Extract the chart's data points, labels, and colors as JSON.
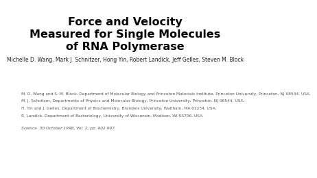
{
  "title_line1": "Force and Velocity",
  "title_line2": "Measured for Single Molecules",
  "title_line3": "of RNA Polymerase",
  "authors": "Michelle D. Wang, Mark J. Schnitzer, Hong Yin, Robert Landick, Jeff Gelles, Steven M. Block",
  "affil1": "M. D. Wang and S. M. Block, Department of Molecular Biology and Princeton Materials Institute, Princeton University, Princeton, NJ 08544, USA.",
  "affil2": "M. J. Schnitzer, Departments of Physics and Molecular Biology, Princeton University, Princeton, NJ 08544, USA.",
  "affil3": "H. Yin and J. Gelles, Department of Biochemistry, Brandeis University, Waltham, MA 01254, USA.",
  "affil4": "R. Landick, Department of Bacteriology, University of Wisconsin, Madison, WI 53706, USA.",
  "source": "Science  30 October 1998, Vol. 2, pp. 902-907.",
  "bg_color": "#ffffff",
  "title_color": "#000000",
  "authors_color": "#222222",
  "affil_color": "#555555",
  "title_fontsize": 11.5,
  "authors_fontsize": 5.5,
  "affil_fontsize": 4.2,
  "source_fontsize": 4.2
}
